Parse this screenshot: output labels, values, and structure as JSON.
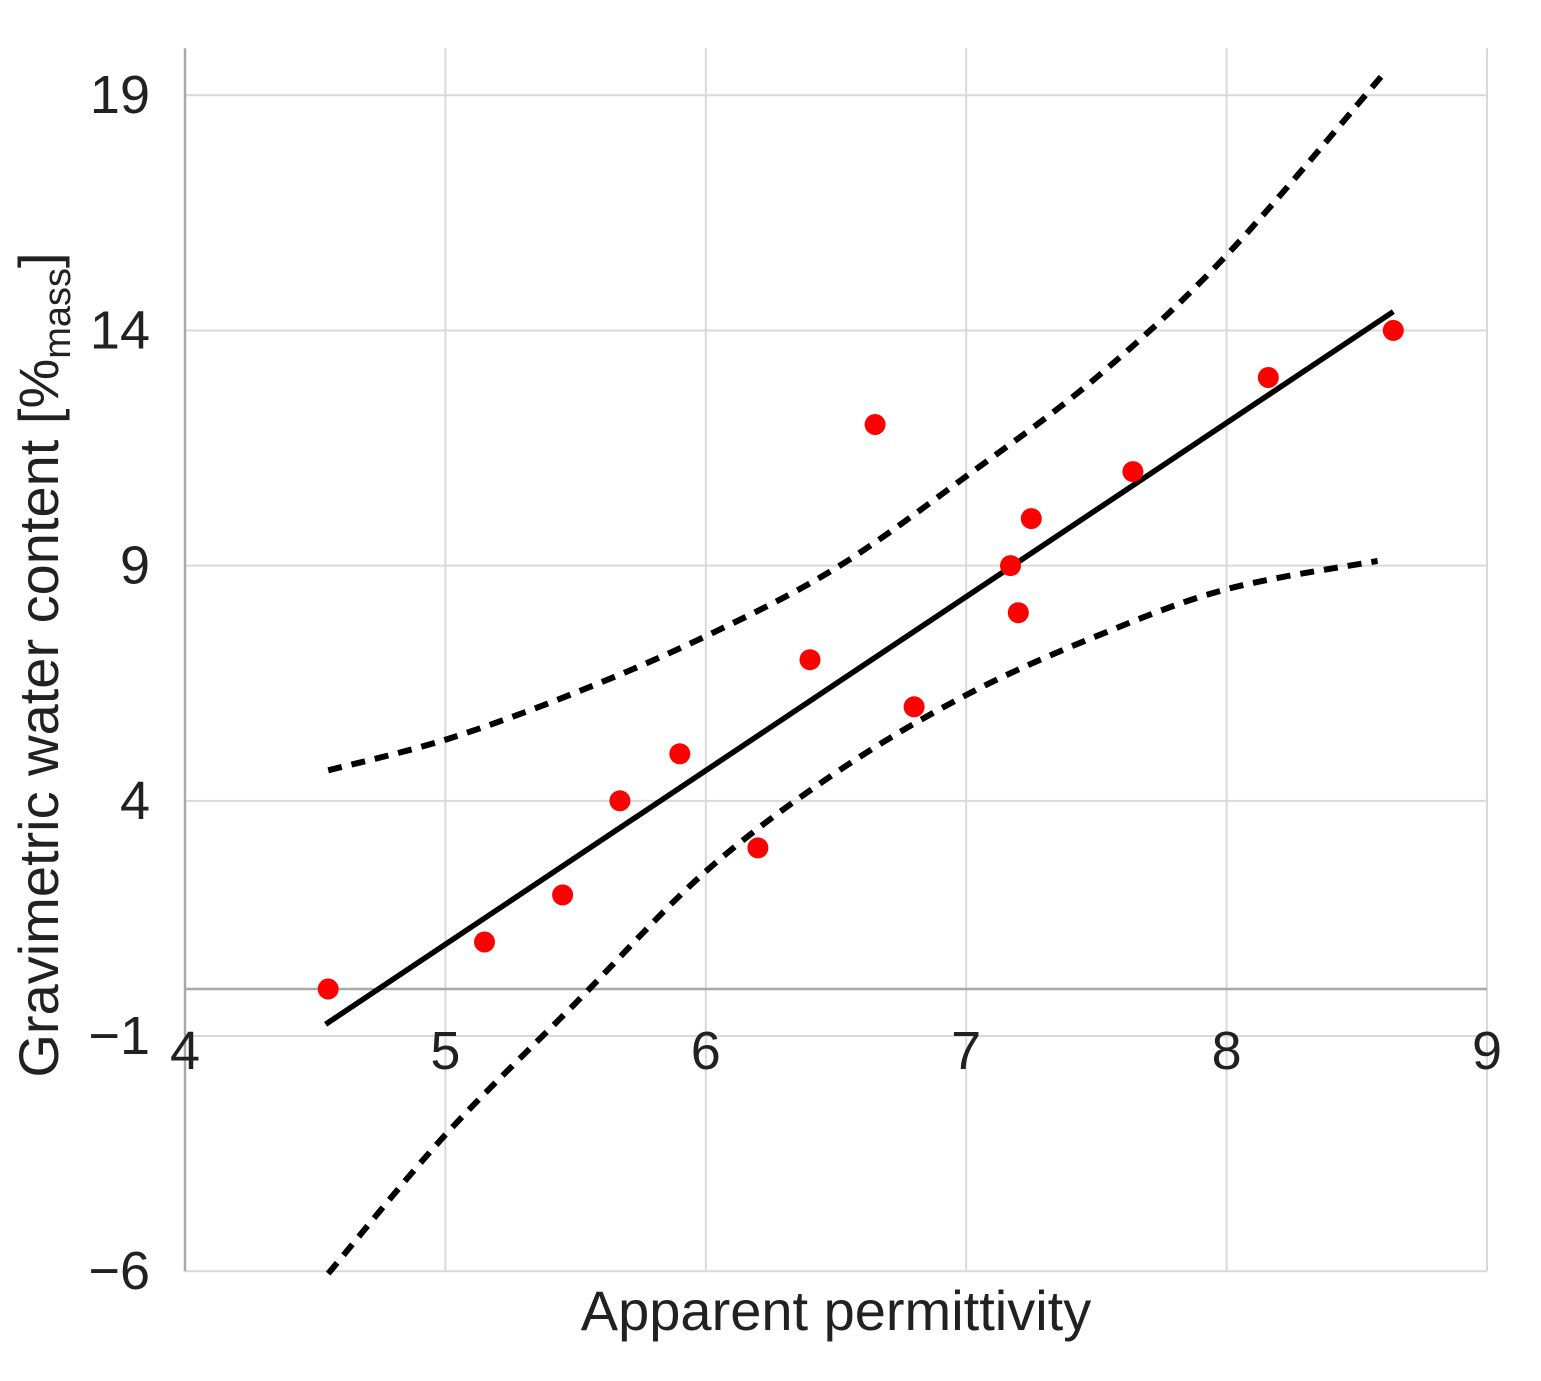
{
  "figure": {
    "background": "#ffffff",
    "text_color": "#212121"
  },
  "chart_data": {
    "type": "scatter",
    "title": "",
    "xlabel": "Apparent permittivity",
    "ylabel": "Gravimetric water content [%mass]",
    "ylabel_parts": {
      "pre": "Gravimetric water content [%",
      "sub": "mass",
      "post": "]"
    },
    "xlim": [
      4,
      9
    ],
    "ylim": [
      -6,
      20
    ],
    "x_ticks": [
      4,
      5,
      6,
      7,
      8,
      9
    ],
    "y_ticks": [
      19,
      14,
      9,
      4,
      -1,
      -6
    ],
    "grid": true,
    "legend": "none",
    "axis_cross_y": 0,
    "colors": {
      "grid": "#d9d9d9",
      "axis": "#a9a9a9",
      "marker": "#ff0000",
      "line": "#000000"
    },
    "series": [
      {
        "name": "observations",
        "kind": "scatter",
        "color": "#ff0000",
        "marker_radius": 10.5,
        "points": [
          [
            4.55,
            0
          ],
          [
            5.15,
            1
          ],
          [
            5.45,
            2
          ],
          [
            5.67,
            4
          ],
          [
            5.9,
            5
          ],
          [
            6.2,
            3
          ],
          [
            6.4,
            7
          ],
          [
            6.65,
            12
          ],
          [
            6.8,
            6
          ],
          [
            7.17,
            9
          ],
          [
            7.2,
            8
          ],
          [
            7.25,
            10
          ],
          [
            7.64,
            11
          ],
          [
            8.16,
            13
          ],
          [
            8.64,
            14
          ]
        ]
      },
      {
        "name": "regression-line",
        "kind": "line",
        "style": "solid",
        "color": "#000000",
        "width": 5.5,
        "points": [
          [
            4.54,
            -0.75
          ],
          [
            8.64,
            14.4
          ]
        ]
      },
      {
        "name": "upper-confidence-bound",
        "kind": "line",
        "style": "dashed",
        "color": "#000000",
        "width": 6,
        "points": [
          [
            4.55,
            4.65
          ],
          [
            5.0,
            5.3
          ],
          [
            5.5,
            6.3
          ],
          [
            6.0,
            7.5
          ],
          [
            6.5,
            8.95
          ],
          [
            7.0,
            10.9
          ],
          [
            7.5,
            13.0
          ],
          [
            8.0,
            15.6
          ],
          [
            8.61,
            19.5
          ]
        ]
      },
      {
        "name": "lower-confidence-bound",
        "kind": "line",
        "style": "dashed",
        "color": "#000000",
        "width": 6,
        "points": [
          [
            4.55,
            -6.05
          ],
          [
            5.0,
            -3.1
          ],
          [
            5.5,
            -0.3
          ],
          [
            6.0,
            2.5
          ],
          [
            6.5,
            4.6
          ],
          [
            7.0,
            6.25
          ],
          [
            7.5,
            7.5
          ],
          [
            8.0,
            8.5
          ],
          [
            8.58,
            9.1
          ]
        ]
      }
    ]
  }
}
